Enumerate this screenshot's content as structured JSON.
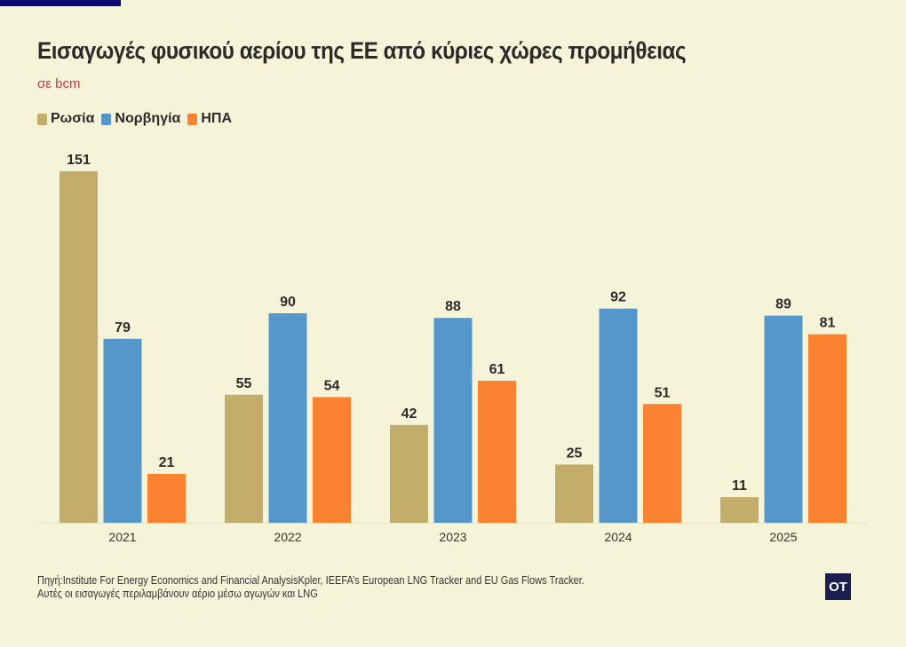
{
  "title": "Εισαγωγές φυσικού αερίου της ΕΕ από κύριες χώρες προμήθειας",
  "subtitle": "σε bcm",
  "source_line1": "Πηγή:Institute For Energy Economics and Financial AnalysisKpler, IEEFA’s European LNG Tracker and EU Gas Flows Tracker.",
  "source_line2": "Αυτές οι εισαγωγές περιλαμβάνουν αέριο μέσω αγωγών και LNG",
  "logo": "OT",
  "chart_data": {
    "type": "bar",
    "title": "Εισαγωγές φυσικού αερίου της ΕΕ από κύριες χώρες προμήθειας",
    "ylabel": "",
    "xlabel": "",
    "ylim": [
      0,
      151
    ],
    "grid": false,
    "legend": "top-left",
    "categories": [
      "2021",
      "2022",
      "2023",
      "2024",
      "2025"
    ],
    "series": [
      {
        "name": "Ρωσία",
        "color": "#c4ac6a",
        "values": [
          151,
          55,
          42,
          25,
          11
        ]
      },
      {
        "name": "Νορβηγία",
        "color": "#5596cb",
        "values": [
          79,
          90,
          88,
          92,
          89
        ]
      },
      {
        "name": "ΗΠΑ",
        "color": "#fb8230",
        "values": [
          21,
          54,
          61,
          51,
          81
        ]
      }
    ]
  }
}
